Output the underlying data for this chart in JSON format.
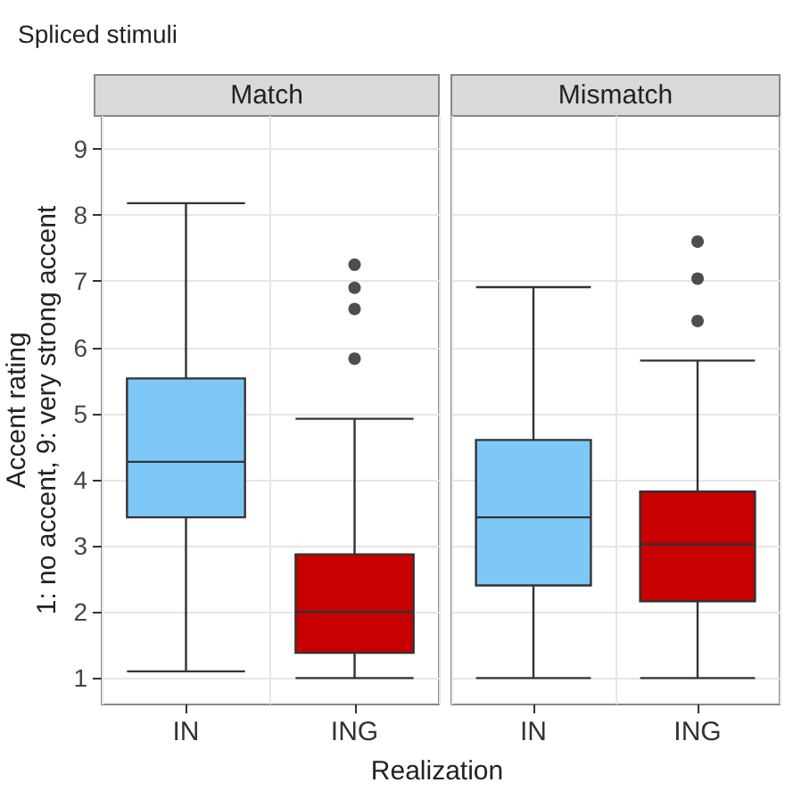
{
  "chart_data": [
    {
      "type": "box",
      "title": "Spliced stimuli",
      "subtitle": "Match",
      "xlabel": "Realization",
      "ylabel": "Accent rating\n1: no accent, 9: very strong accent",
      "categories": [
        "IN",
        "ING"
      ],
      "colors": [
        "#7ec8f8",
        "#c80000"
      ],
      "boxes": [
        {
          "low": 1.1,
          "q1": 3.43,
          "median": 4.27,
          "q3": 5.53,
          "high": 8.18
        },
        {
          "low": 1.0,
          "q1": 1.38,
          "median": 2.0,
          "q3": 2.87,
          "high": 4.92,
          "outliers": [
            5.83,
            6.58,
            6.9,
            7.25
          ]
        }
      ],
      "ylim": [
        0.6,
        9.5
      ],
      "yticks": [
        1,
        2,
        3,
        4,
        5,
        6,
        7,
        8,
        9
      ],
      "grid": true
    },
    {
      "type": "box",
      "subtitle": "Mismatch",
      "categories": [
        "IN",
        "ING"
      ],
      "colors": [
        "#7ec8f8",
        "#c80000"
      ],
      "boxes": [
        {
          "low": 1.0,
          "q1": 2.4,
          "median": 3.43,
          "q3": 4.6,
          "high": 6.91
        },
        {
          "low": 1.0,
          "q1": 2.16,
          "median": 3.02,
          "q3": 3.82,
          "high": 5.8,
          "outliers": [
            6.4,
            7.04,
            7.6
          ]
        }
      ],
      "ylim": [
        0.6,
        9.5
      ],
      "yticks": [
        1,
        2,
        3,
        4,
        5,
        6,
        7,
        8,
        9
      ],
      "grid": true,
      "tick_labels": "x"
    }
  ]
}
